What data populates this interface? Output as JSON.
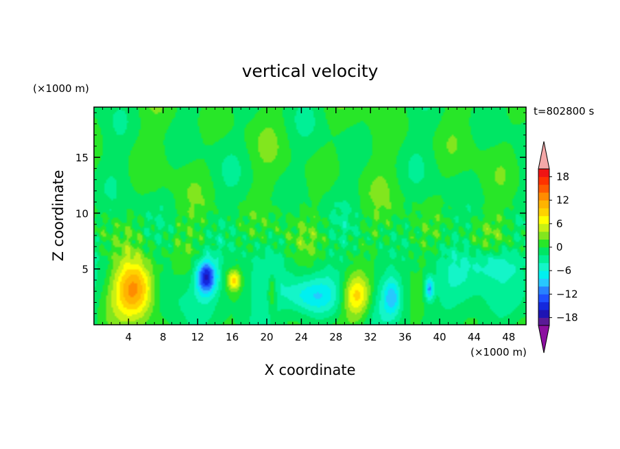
{
  "chart_data": {
    "type": "heatmap",
    "title": "vertical velocity",
    "xlabel": "X coordinate",
    "ylabel": "Z coordinate",
    "x_unit": "(×1000 m)",
    "y_unit": "(×1000 m)",
    "time_label": "t=802800 s",
    "xlim": [
      0,
      50
    ],
    "ylim": [
      0,
      19.5
    ],
    "xticks": [
      4,
      8,
      12,
      16,
      20,
      24,
      28,
      32,
      36,
      40,
      44,
      48
    ],
    "xtick_labels": [
      "4",
      "8",
      "12",
      "16",
      "20",
      "24",
      "28",
      "32",
      "36",
      "40",
      "44",
      "48"
    ],
    "yticks": [
      5,
      10,
      15
    ],
    "ytick_labels": [
      "5",
      "10",
      "15"
    ],
    "colorbar": {
      "levels": [
        -20,
        -18,
        -16,
        -14,
        -12,
        -10,
        -8,
        -6,
        -4,
        -2,
        0,
        2,
        4,
        6,
        8,
        10,
        12,
        14,
        16,
        18,
        20
      ],
      "tick_values": [
        18,
        12,
        6,
        0,
        -6,
        -12,
        -18
      ],
      "tick_labels": [
        "18",
        "12",
        "6",
        "0",
        "−6",
        "−12",
        "−18"
      ],
      "colors": [
        "#5a1a96",
        "#1e14b4",
        "#1428dc",
        "#1e50ff",
        "#2882ff",
        "#28c8ff",
        "#00f0f0",
        "#14f5c8",
        "#00f096",
        "#00e664",
        "#28e628",
        "#82e61e",
        "#c8f014",
        "#ffff00",
        "#ffd200",
        "#ffb400",
        "#ff8c00",
        "#ff5a00",
        "#ff3200",
        "#f01414"
      ],
      "under_color": "#8c0fa0",
      "over_color": "#f4a8a8"
    },
    "features": [
      {
        "x": 4.8,
        "z": 3.2,
        "value": 16,
        "sx": 2.4,
        "sz": 2.6
      },
      {
        "x": 13.0,
        "z": 4.3,
        "value": -15,
        "sx": 1.2,
        "sz": 1.5
      },
      {
        "x": 16.2,
        "z": 4.0,
        "value": 9,
        "sx": 0.8,
        "sz": 0.9
      },
      {
        "x": 30.4,
        "z": 2.6,
        "value": 11,
        "sx": 1.7,
        "sz": 1.9
      },
      {
        "x": 25.0,
        "z": 2.5,
        "value": -6,
        "sx": 3.0,
        "sz": 1.6
      },
      {
        "x": 34.5,
        "z": 2.5,
        "value": -7,
        "sx": 1.0,
        "sz": 1.6
      },
      {
        "x": 38.8,
        "z": 3.2,
        "value": -10,
        "sx": 0.5,
        "sz": 1.0
      },
      {
        "x": 46.5,
        "z": 5.5,
        "value": -5,
        "sx": 3.0,
        "sz": 1.4
      },
      {
        "x": 20.6,
        "z": 3.0,
        "value": 6,
        "sx": 0.5,
        "sz": 1.5
      }
    ]
  }
}
